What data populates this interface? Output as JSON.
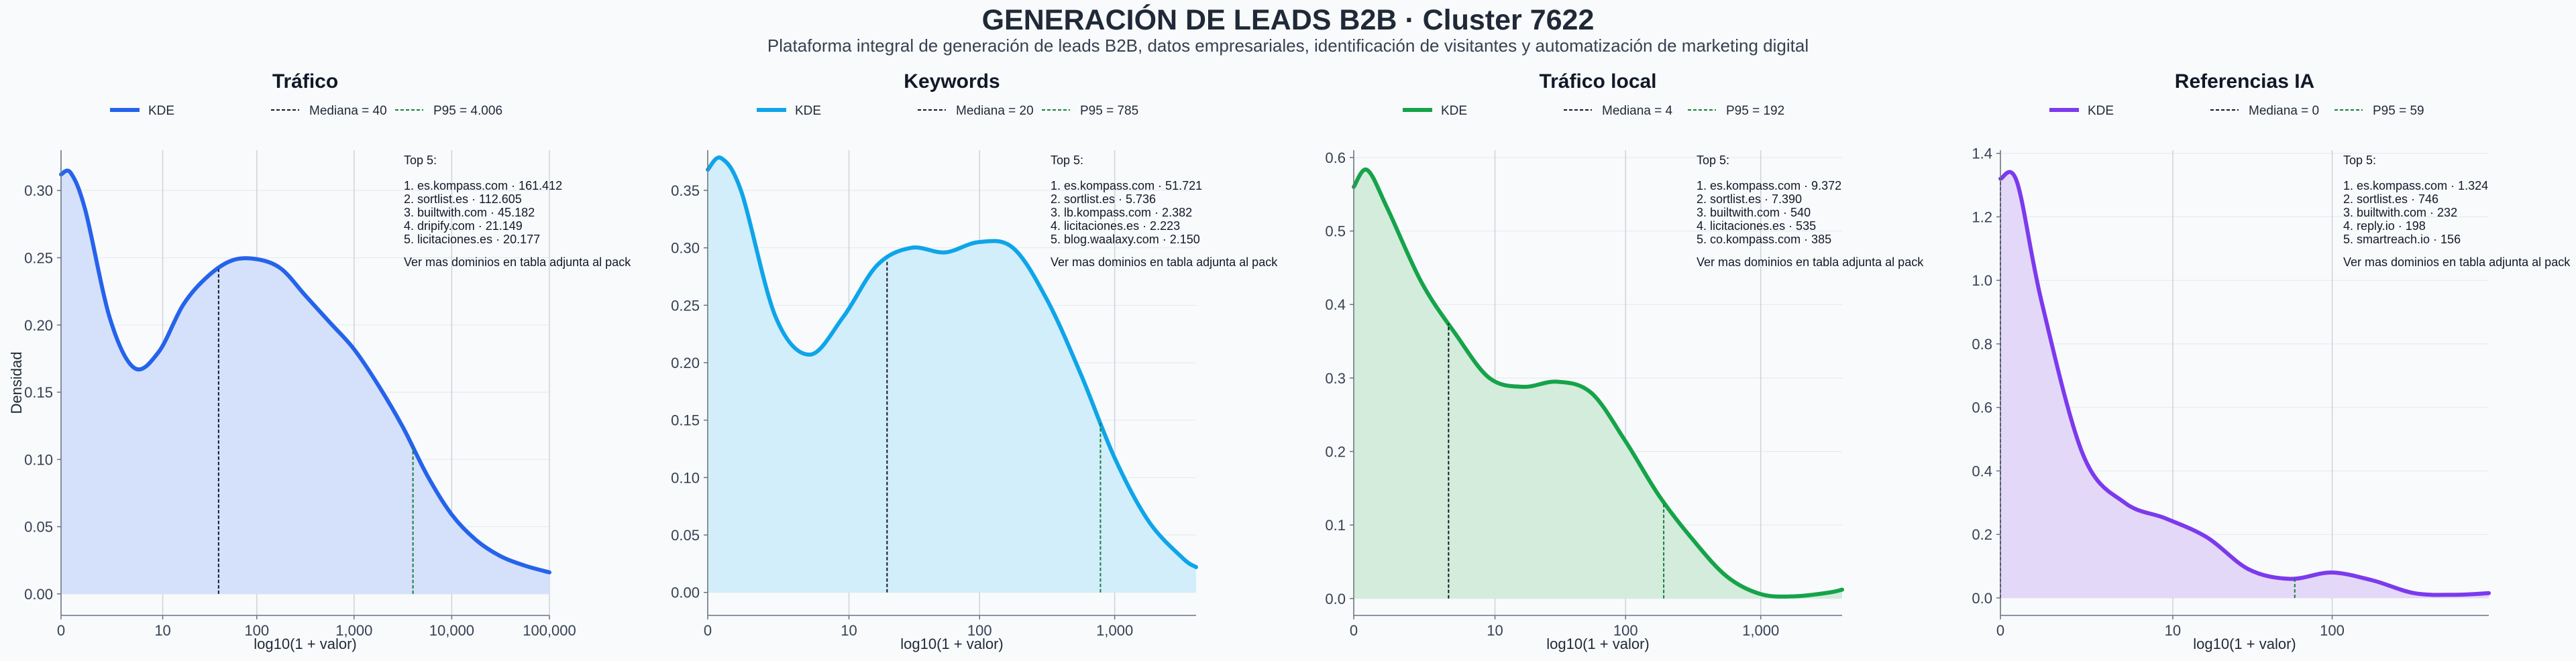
{
  "title": "GENERACIÓN DE LEADS B2B · Cluster 7622",
  "subtitle": "Plataforma integral de generación de leads B2B, datos empresariales, identificación de visitantes y automatización de marketing digital",
  "chart_data": [
    {
      "type": "area",
      "title": "Tráfico",
      "xlabel": "log10(1 + valor)",
      "ylabel": "Densidad",
      "color": "#2563eb",
      "fill": "#d5e0fa",
      "legend": {
        "kde": "KDE",
        "median": "Mediana = 40",
        "p95": "P95 = 4.006"
      },
      "xlim": [
        0,
        5.0
      ],
      "ylim": [
        -0.016,
        0.33
      ],
      "yticks": [
        0.0,
        0.05,
        0.1,
        0.15,
        0.2,
        0.25,
        0.3
      ],
      "ytick_labels": [
        "0.00",
        "0.05",
        "0.10",
        "0.15",
        "0.20",
        "0.25",
        "0.30"
      ],
      "xticks": [
        0,
        1.041,
        2.004,
        3.0,
        4.0,
        5.0
      ],
      "xtick_labels": [
        "0",
        "10",
        "100",
        "1,000",
        "10,000",
        "100,000"
      ],
      "median_x": 1.613,
      "p95_x": 3.603,
      "x": [
        0,
        0.1,
        0.25,
        0.5,
        0.75,
        1.0,
        1.25,
        1.5,
        1.75,
        2.0,
        2.25,
        2.5,
        2.75,
        3.0,
        3.25,
        3.5,
        3.75,
        4.0,
        4.25,
        4.5,
        4.75,
        5.0
      ],
      "y": [
        0.312,
        0.313,
        0.285,
        0.205,
        0.168,
        0.18,
        0.215,
        0.236,
        0.248,
        0.249,
        0.242,
        0.222,
        0.202,
        0.182,
        0.155,
        0.124,
        0.088,
        0.059,
        0.04,
        0.028,
        0.021,
        0.016
      ],
      "top": {
        "heading": "Top 5:",
        "items": [
          "1. es.kompass.com · 161.412",
          "2. sortlist.es · 112.605",
          "3. builtwith.com · 45.182",
          "4. dripify.com · 21.149",
          "5. licitaciones.es · 20.177"
        ],
        "note": "Ver mas dominios en tabla adjunta al pack"
      }
    },
    {
      "type": "area",
      "title": "Keywords",
      "xlabel": "log10(1 + valor)",
      "ylabel": "",
      "color": "#0ea5e9",
      "fill": "#d2eefb",
      "legend": {
        "kde": "KDE",
        "median": "Mediana = 20",
        "p95": "P95 = 785"
      },
      "xlim": [
        0,
        3.6
      ],
      "ylim": [
        -0.02,
        0.385
      ],
      "yticks": [
        0.0,
        0.05,
        0.1,
        0.15,
        0.2,
        0.25,
        0.3,
        0.35
      ],
      "ytick_labels": [
        "0.00",
        "0.05",
        "0.10",
        "0.15",
        "0.20",
        "0.25",
        "0.30",
        "0.35"
      ],
      "xticks": [
        0,
        1.041,
        2.004,
        3.0
      ],
      "xtick_labels": [
        "0",
        "10",
        "100",
        "1,000"
      ],
      "median_x": 1.322,
      "p95_x": 2.895,
      "x": [
        0,
        0.1,
        0.25,
        0.5,
        0.75,
        1.0,
        1.25,
        1.5,
        1.75,
        2.0,
        2.25,
        2.5,
        2.75,
        3.0,
        3.25,
        3.5,
        3.6
      ],
      "y": [
        0.368,
        0.378,
        0.348,
        0.24,
        0.207,
        0.24,
        0.285,
        0.3,
        0.296,
        0.305,
        0.3,
        0.255,
        0.19,
        0.117,
        0.062,
        0.03,
        0.022
      ],
      "top": {
        "heading": "Top 5:",
        "items": [
          "1. es.kompass.com · 51.721",
          "2. sortlist.es · 5.736",
          "3. lb.kompass.com · 2.382",
          "4. licitaciones.es · 2.223",
          "5. blog.waalaxy.com · 2.150"
        ],
        "note": "Ver mas dominios en tabla adjunta al pack"
      }
    },
    {
      "type": "area",
      "title": "Tráfico local",
      "xlabel": "log10(1 + valor)",
      "ylabel": "",
      "color": "#16a34a",
      "fill": "#d3ecdb",
      "legend": {
        "kde": "KDE",
        "median": "Mediana = 4",
        "p95": "P95 = 192"
      },
      "xlim": [
        0,
        3.6
      ],
      "ylim": [
        -0.023,
        0.61
      ],
      "yticks": [
        0.0,
        0.1,
        0.2,
        0.3,
        0.4,
        0.5,
        0.6
      ],
      "ytick_labels": [
        "0.0",
        "0.1",
        "0.2",
        "0.3",
        "0.4",
        "0.5",
        "0.6"
      ],
      "xticks": [
        0,
        1.041,
        2.004,
        3.0
      ],
      "xtick_labels": [
        "0",
        "10",
        "100",
        "1,000"
      ],
      "median_x": 0.699,
      "p95_x": 2.285,
      "x": [
        0,
        0.1,
        0.25,
        0.5,
        0.75,
        1.0,
        1.25,
        1.5,
        1.75,
        2.0,
        2.25,
        2.5,
        2.75,
        3.0,
        3.25,
        3.5,
        3.6
      ],
      "y": [
        0.56,
        0.583,
        0.53,
        0.43,
        0.36,
        0.3,
        0.288,
        0.295,
        0.28,
        0.215,
        0.14,
        0.08,
        0.03,
        0.006,
        0.003,
        0.008,
        0.012
      ],
      "top": {
        "heading": "Top 5:",
        "items": [
          "1. es.kompass.com · 9.372",
          "2. sortlist.es · 7.390",
          "3. builtwith.com · 540",
          "4. licitaciones.es · 535",
          "5. co.kompass.com · 385"
        ],
        "note": "Ver mas dominios en tabla adjunta al pack"
      }
    },
    {
      "type": "area",
      "title": "Referencias IA",
      "xlabel": "log10(1 + valor)",
      "ylabel": "",
      "color": "#7c3aed",
      "fill": "#e4d8f8",
      "legend": {
        "kde": "KDE",
        "median": "Mediana = 0",
        "p95": "P95 = 59"
      },
      "xlim": [
        0,
        2.95
      ],
      "ylim": [
        -0.055,
        1.41
      ],
      "yticks": [
        0.0,
        0.2,
        0.4,
        0.6,
        0.8,
        1.0,
        1.2,
        1.4
      ],
      "ytick_labels": [
        "0.0",
        "0.2",
        "0.4",
        "0.6",
        "0.8",
        "1.0",
        "1.2",
        "1.4"
      ],
      "xticks": [
        0,
        1.041,
        2.004
      ],
      "xtick_labels": [
        "0",
        "10",
        "100"
      ],
      "median_x": 0.0,
      "p95_x": 1.778,
      "x": [
        0,
        0.1,
        0.25,
        0.5,
        0.75,
        1.0,
        1.25,
        1.5,
        1.75,
        2.0,
        2.25,
        2.5,
        2.75,
        2.95
      ],
      "y": [
        1.32,
        1.31,
        0.93,
        0.45,
        0.3,
        0.25,
        0.19,
        0.09,
        0.06,
        0.08,
        0.055,
        0.015,
        0.01,
        0.015
      ],
      "top": {
        "heading": "Top 5:",
        "items": [
          "1. es.kompass.com · 1.324",
          "2. sortlist.es · 746",
          "3. builtwith.com · 232",
          "4. reply.io · 198",
          "5. smartreach.io · 156"
        ],
        "note": "Ver mas dominios en tabla adjunta al pack"
      }
    }
  ]
}
